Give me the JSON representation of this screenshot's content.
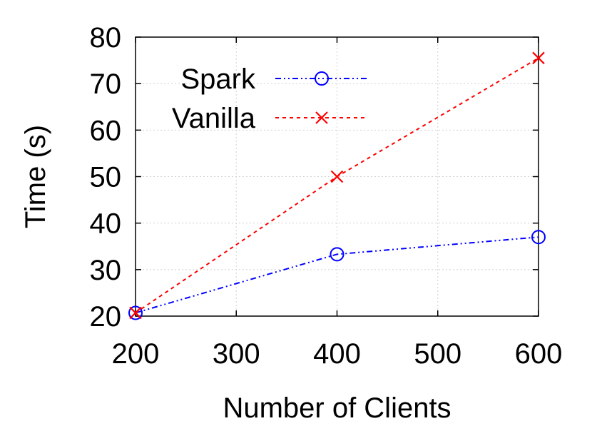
{
  "chart_data": {
    "type": "line",
    "xlabel": "Number of Clients",
    "ylabel": "Time (s)",
    "xlim": [
      200,
      600
    ],
    "ylim": [
      20,
      80
    ],
    "xticks": [
      200,
      300,
      400,
      500,
      600
    ],
    "yticks": [
      20,
      30,
      40,
      50,
      60,
      70,
      80
    ],
    "grid": true,
    "legend": "top-left",
    "series": [
      {
        "name": "Spark",
        "color": "#0000ff",
        "marker": "circle",
        "dash": "dash-dot-dot",
        "x": [
          200,
          400,
          600
        ],
        "y": [
          20.7,
          33.3,
          37.0
        ]
      },
      {
        "name": "Vanilla",
        "color": "#ff0000",
        "marker": "x",
        "dash": "dotted",
        "x": [
          200,
          400,
          600
        ],
        "y": [
          20.7,
          50.0,
          75.5
        ]
      }
    ]
  }
}
